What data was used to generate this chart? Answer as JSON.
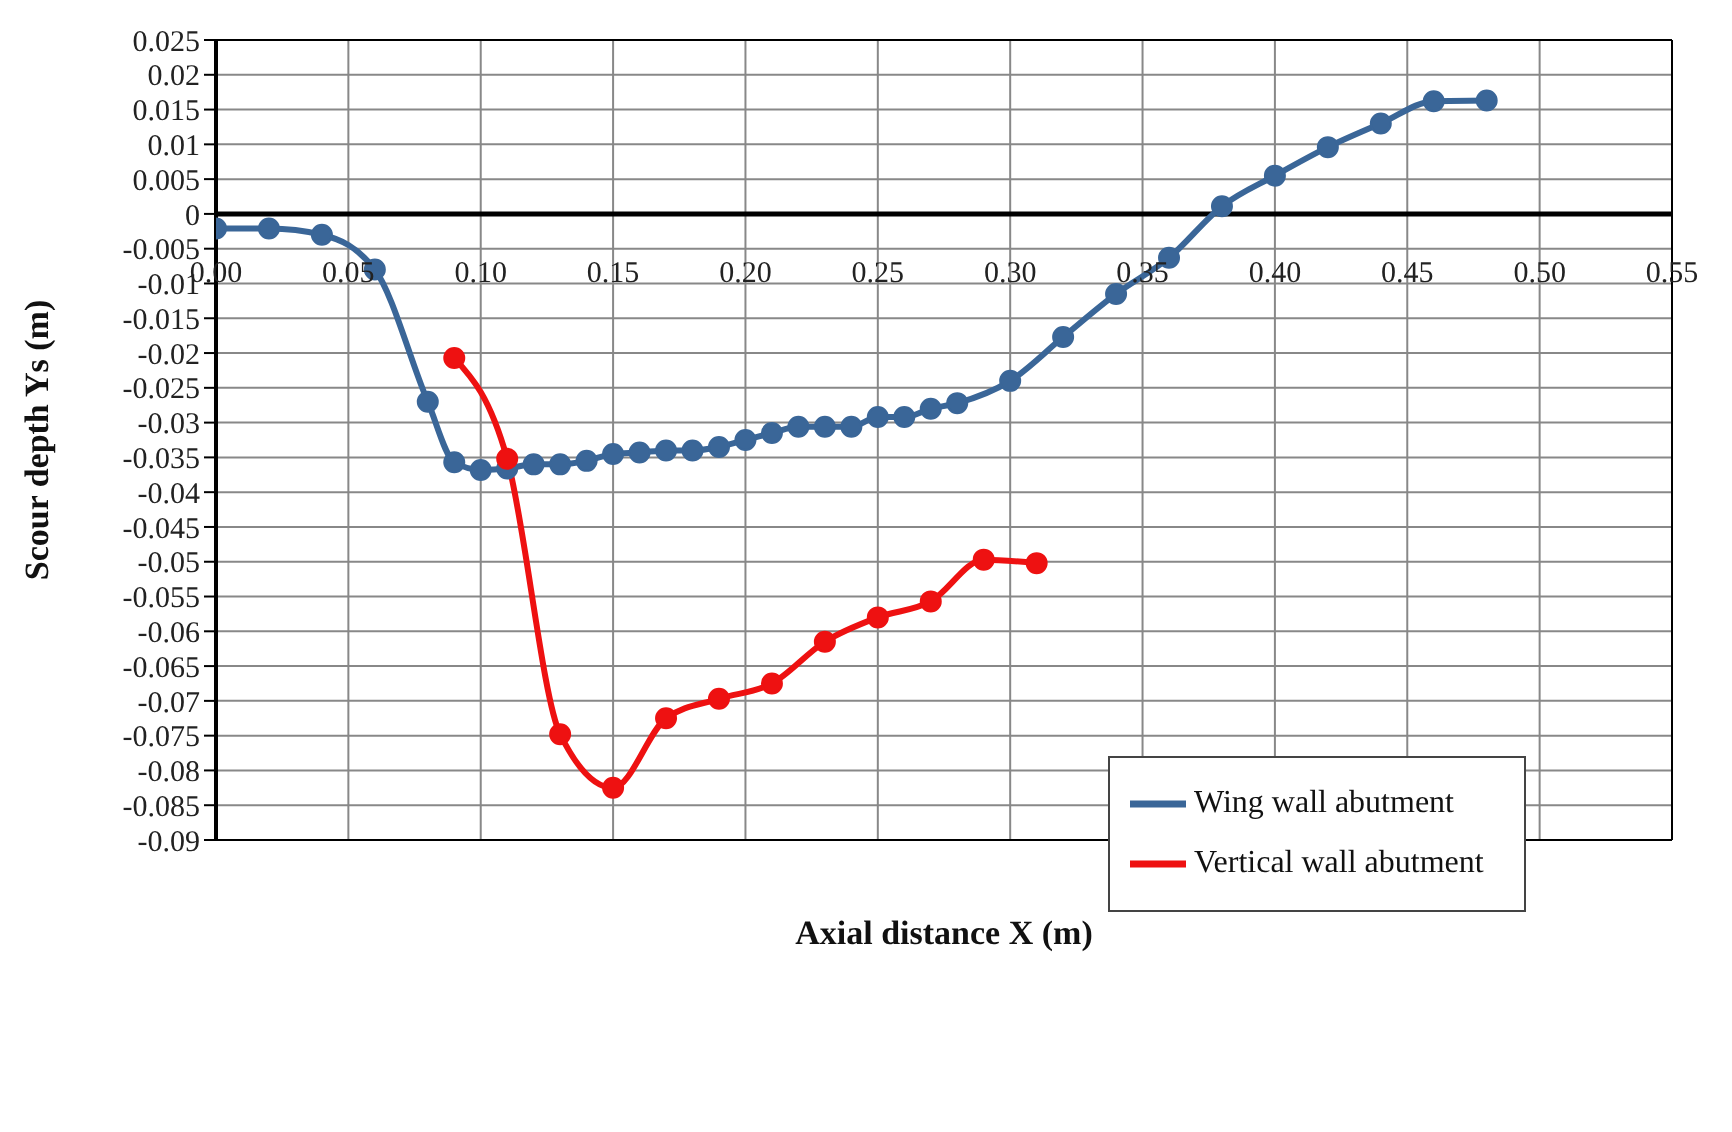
{
  "chart_data": {
    "type": "line",
    "xlabel": "Axial distance X (m)",
    "ylabel": "Scour depth Ys (m)",
    "xlim": [
      0,
      0.55
    ],
    "xticks": [
      {
        "value": 0,
        "label": "0.00"
      },
      {
        "value": 0.05,
        "label": "0.05"
      },
      {
        "value": 0.1,
        "label": "0.10"
      },
      {
        "value": 0.15,
        "label": "0.15"
      },
      {
        "value": 0.2,
        "label": "0.20"
      },
      {
        "value": 0.25,
        "label": "0.25"
      },
      {
        "value": 0.3,
        "label": "0.30"
      },
      {
        "value": 0.35,
        "label": "0.35"
      },
      {
        "value": 0.4,
        "label": "0.40"
      },
      {
        "value": 0.45,
        "label": "0.45"
      },
      {
        "value": 0.5,
        "label": "0.50"
      },
      {
        "value": 0.55,
        "label": "0.55"
      }
    ],
    "ylim": [
      -0.09,
      0.025
    ],
    "yticks": [
      -0.09,
      -0.085,
      -0.08,
      -0.075,
      -0.07,
      -0.065,
      -0.06,
      -0.055,
      -0.05,
      -0.045,
      -0.04,
      -0.035,
      -0.03,
      -0.025,
      -0.02,
      -0.015,
      -0.01,
      -0.005,
      0,
      0.005,
      0.01,
      0.015,
      0.02,
      0.025
    ],
    "grid": true,
    "legend": "bottom right",
    "marker": "circle",
    "line_style": "solid",
    "series": [
      {
        "name": "Wing wall abutment",
        "color": "#3a6698",
        "x": [
          0,
          0.02,
          0.04,
          0.06,
          0.08,
          0.09,
          0.1,
          0.11,
          0.12,
          0.13,
          0.14,
          0.15,
          0.16,
          0.17,
          0.18,
          0.19,
          0.2,
          0.21,
          0.22,
          0.23,
          0.24,
          0.25,
          0.26,
          0.27,
          0.28,
          0.3,
          0.32,
          0.34,
          0.36,
          0.38,
          0.4,
          0.42,
          0.44,
          0.46,
          0.48
        ],
        "values": [
          -0.0021,
          -0.0021,
          -0.003,
          -0.008,
          -0.027,
          -0.0357,
          -0.0368,
          -0.0366,
          -0.036,
          -0.036,
          -0.0355,
          -0.0345,
          -0.0343,
          -0.034,
          -0.034,
          -0.0335,
          -0.0325,
          -0.0315,
          -0.0306,
          -0.0306,
          -0.0306,
          -0.0292,
          -0.0292,
          -0.028,
          -0.0272,
          -0.024,
          -0.0177,
          -0.0115,
          -0.0063,
          0.0011,
          0.0055,
          0.0096,
          0.013,
          0.0162,
          0.0163
        ]
      },
      {
        "name": "Vertical wall abutment",
        "color": "#ee1111",
        "x": [
          0.09,
          0.11,
          0.13,
          0.15,
          0.17,
          0.19,
          0.21,
          0.23,
          0.25,
          0.27,
          0.29,
          0.31
        ],
        "values": [
          -0.0207,
          -0.0352,
          -0.0748,
          -0.0825,
          -0.0725,
          -0.0697,
          -0.0675,
          -0.0615,
          -0.058,
          -0.0557,
          -0.0497,
          -0.0502
        ]
      }
    ]
  }
}
